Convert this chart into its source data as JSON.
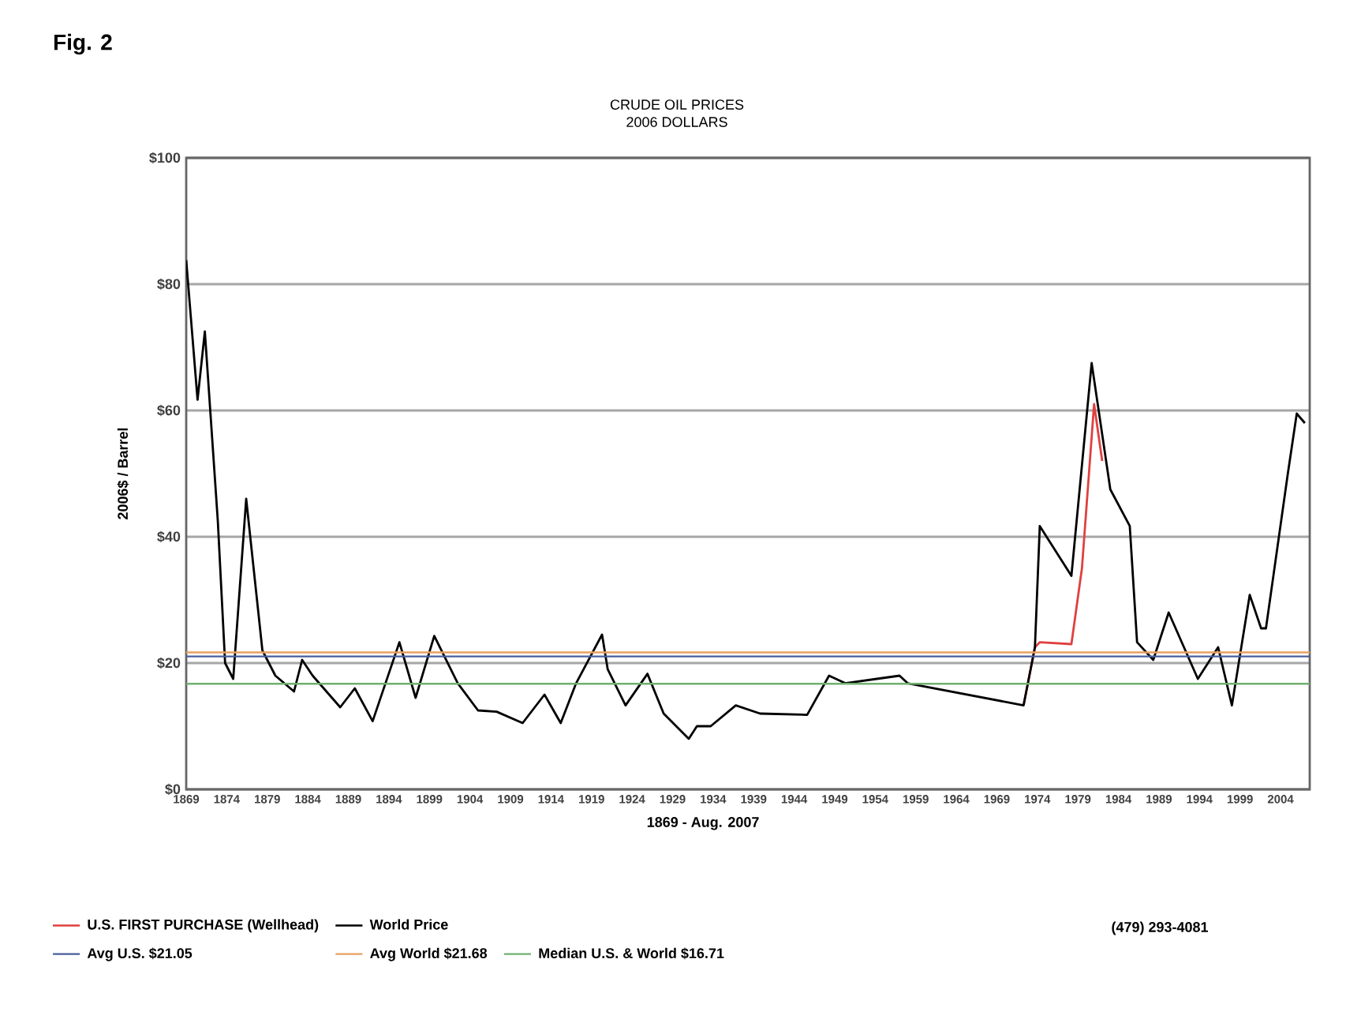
{
  "chart_data": {
    "type": "line",
    "title": "CRUDE OIL PRICES",
    "subtitle": "2006 DOLLARS",
    "xlabel": "1869 - Aug. 2007",
    "ylabel": "2006$ / Barrel",
    "annotations": [
      "Fig. 2",
      "(479) 293-4081"
    ],
    "xlim": [
      1869,
      2007.6
    ],
    "xticks": [
      1869,
      1874,
      1879,
      1884,
      1889,
      1894,
      1899,
      1904,
      1909,
      1914,
      1919,
      1924,
      1929,
      1934,
      1939,
      1944,
      1949,
      1954,
      1959,
      1964,
      1969,
      1974,
      1979,
      1984,
      1989,
      1994,
      1999,
      2004
    ],
    "ylim": [
      0,
      100
    ],
    "yticks": [
      {
        "value": 0,
        "label": "$0"
      },
      {
        "value": 20,
        "label": "$20"
      },
      {
        "value": 40,
        "label": "$40"
      },
      {
        "value": 60,
        "label": "$60"
      },
      {
        "value": 80,
        "label": "$80"
      },
      {
        "value": 100,
        "label": "$100"
      }
    ],
    "grid": "y",
    "legend": "bottom",
    "series": [
      {
        "name": "U.S. FIRST PURCHASE (Wellhead)",
        "color": "#e04040",
        "x": [
          1972.3,
          1973.7,
          1974.3,
          1978.2,
          1979.5,
          1981,
          1982
        ],
        "values": [
          13.3,
          22.5,
          23.3,
          23,
          35,
          61,
          52
        ]
      },
      {
        "name": "World Price",
        "color": "#000000",
        "x": [
          1869,
          1870.4,
          1871.3,
          1872.9,
          1873.8,
          1874.8,
          1876.4,
          1878.4,
          1880,
          1882.3,
          1883.3,
          1884.6,
          1888,
          1889.8,
          1892,
          1895.3,
          1897.3,
          1899.6,
          1902.5,
          1905,
          1907.3,
          1910.5,
          1913.2,
          1915.2,
          1917.1,
          1920.3,
          1921,
          1923.2,
          1925.9,
          1927.9,
          1931,
          1932,
          1933.7,
          1936.8,
          1939.8,
          1945.6,
          1948.3,
          1950.3,
          1954.2,
          1957,
          1958,
          1972.3,
          1973.7,
          1974.3,
          1978.2,
          1980.7,
          1983,
          1985.4,
          1986.3,
          1988.3,
          1990.2,
          1993.8,
          1996.3,
          1998,
          2000.2,
          2001.6,
          2002.2,
          2004.9,
          2006,
          2007
        ],
        "values": [
          83.8,
          61.7,
          72.5,
          42.5,
          20,
          17.5,
          46,
          22,
          18,
          15.5,
          20.5,
          18,
          13,
          16,
          10.8,
          23.3,
          14.5,
          24.3,
          16.8,
          12.5,
          12.3,
          10.5,
          15,
          10.5,
          16.8,
          24.5,
          19,
          13.3,
          18.3,
          12,
          8,
          10,
          10,
          13.3,
          12,
          11.8,
          18,
          16.8,
          17.5,
          18,
          16.8,
          13.3,
          22.5,
          41.7,
          33.8,
          67.5,
          47.5,
          41.7,
          23.3,
          20.5,
          28,
          17.5,
          22.5,
          13.3,
          30.8,
          25.5,
          25.5,
          50,
          59.5,
          58
        ]
      }
    ],
    "ref_lines": [
      {
        "axis": "y",
        "value": 21.05,
        "label": "Avg U.S. $21.05",
        "color": "#4a5f9a"
      },
      {
        "axis": "y",
        "value": 21.68,
        "label": "Avg World $21.68",
        "color": "#e8a060"
      },
      {
        "axis": "y",
        "value": 16.71,
        "label": "Median U.S. & World $16.71",
        "color": "#70b070"
      }
    ]
  }
}
